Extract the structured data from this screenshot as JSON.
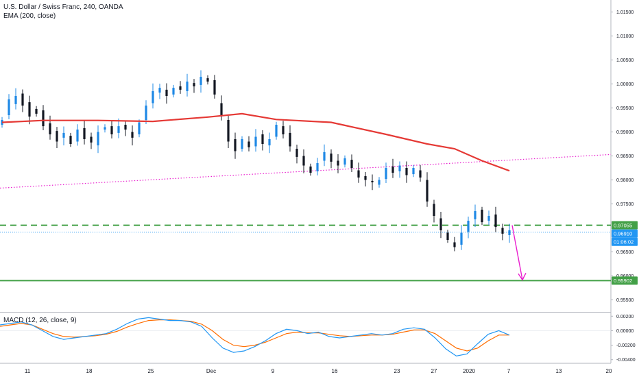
{
  "header": {
    "title": "U.S. Dollar / Swiss Franc, 240, OANDA",
    "indicator": "EMA (200, close)"
  },
  "macd_label": "MACD (12, 26, close, 9)",
  "colors": {
    "up": "#1e88e5",
    "down": "#131722",
    "ema": "#e53935",
    "green": "#43a047",
    "magenta": "#e91ece",
    "last_price": "#2196f3",
    "macd_line": "#2196f3",
    "signal_line": "#ff6d00"
  },
  "chart_data": [
    {
      "type": "candlestick",
      "title": "U.S. Dollar / Swiss Franc, 240, OANDA",
      "ylim": [
        0.9525,
        1.0175
      ],
      "y_ticks": [
        "1.01500",
        "1.01000",
        "1.00500",
        "1.00000",
        "0.99500",
        "0.99000",
        "0.98500",
        "0.98000",
        "0.97500",
        "0.96500",
        "0.96000",
        "0.95500"
      ],
      "x_ticks": [
        "11",
        "18",
        "25",
        "Dec",
        "9",
        "16",
        "23",
        "27",
        "2020",
        "7",
        "13",
        "20"
      ],
      "close_path": [
        [
          0.9915,
          0.9925
        ],
        [
          0.9935,
          0.9968
        ],
        [
          0.9958,
          0.9975
        ],
        [
          0.998,
          0.9955
        ],
        [
          0.9962,
          0.9932
        ],
        [
          0.9948,
          0.9938
        ],
        [
          0.9945,
          0.9912
        ],
        [
          0.9918,
          0.9895
        ],
        [
          0.9902,
          0.988
        ],
        [
          0.9888,
          0.9898
        ],
        [
          0.9892,
          0.9875
        ],
        [
          0.988,
          0.9905
        ],
        [
          0.9908,
          0.9885
        ],
        [
          0.989,
          0.9878
        ],
        [
          0.9872,
          0.99
        ],
        [
          0.9905,
          0.991
        ],
        [
          0.9912,
          0.9895
        ],
        [
          0.9898,
          0.9912
        ],
        [
          0.9915,
          0.9905
        ],
        [
          0.99,
          0.9888
        ],
        [
          0.9895,
          0.992
        ],
        [
          0.9925,
          0.9955
        ],
        [
          0.996,
          0.9985
        ],
        [
          0.9982,
          0.9992
        ],
        [
          0.9988,
          0.9975
        ],
        [
          0.9978,
          0.9992
        ],
        [
          0.9995,
          0.9988
        ],
        [
          0.9985,
          1.0005
        ],
        [
          1.0002,
          0.9995
        ],
        [
          0.9998,
          1.0015
        ],
        [
          1.0012,
          1.0005
        ],
        [
          1.0008,
          0.9978
        ],
        [
          0.996,
          0.9935
        ],
        [
          0.9925,
          0.988
        ],
        [
          0.9885,
          0.986
        ],
        [
          0.9865,
          0.9885
        ],
        [
          0.988,
          0.9868
        ],
        [
          0.987,
          0.989
        ],
        [
          0.9895,
          0.9875
        ],
        [
          0.9872,
          0.9885
        ],
        [
          0.989,
          0.9915
        ],
        [
          0.9912,
          0.9895
        ],
        [
          0.9898,
          0.987
        ],
        [
          0.9865,
          0.9848
        ],
        [
          0.985,
          0.983
        ],
        [
          0.9828,
          0.9815
        ],
        [
          0.9818,
          0.9835
        ],
        [
          0.984,
          0.9858
        ],
        [
          0.9855,
          0.9838
        ],
        [
          0.984,
          0.983
        ],
        [
          0.9832,
          0.9845
        ],
        [
          0.9842,
          0.9825
        ],
        [
          0.982,
          0.9805
        ],
        [
          0.9808,
          0.98
        ],
        [
          0.9798,
          0.9795
        ],
        [
          0.979,
          0.98
        ],
        [
          0.9802,
          0.9825
        ],
        [
          0.9828,
          0.9815
        ],
        [
          0.9818,
          0.983
        ],
        [
          0.9825,
          0.981
        ],
        [
          0.9812,
          0.9825
        ],
        [
          0.982,
          0.9805
        ],
        [
          0.98,
          0.9755
        ],
        [
          0.975,
          0.9725
        ],
        [
          0.972,
          0.9695
        ],
        [
          0.969,
          0.9675
        ],
        [
          0.967,
          0.966
        ],
        [
          0.9665,
          0.969
        ],
        [
          0.9692,
          0.9715
        ],
        [
          0.9718,
          0.9735
        ],
        [
          0.9738,
          0.9712
        ],
        [
          0.9715,
          0.9725
        ],
        [
          0.9728,
          0.9702
        ],
        [
          0.97,
          0.9688
        ],
        [
          0.9685,
          0.9695
        ]
      ],
      "ema_200": [
        [
          0,
          0.992
        ],
        [
          6,
          0.9924
        ],
        [
          14,
          0.9924
        ],
        [
          22,
          0.9922
        ],
        [
          30,
          0.9931
        ],
        [
          35,
          0.9938
        ],
        [
          40,
          0.9926
        ],
        [
          48,
          0.992
        ],
        [
          56,
          0.9895
        ],
        [
          62,
          0.9875
        ],
        [
          66,
          0.9865
        ],
        [
          70,
          0.984
        ],
        [
          74,
          0.9819
        ]
      ],
      "trendline_start": 0.9783,
      "trendline_end": 0.9853,
      "resistance_level": "0.97055",
      "support_level": "0.95902",
      "last_price": "0.96910",
      "countdown": "01:06:02",
      "projection_target": 0.95902
    },
    {
      "type": "line",
      "title": "MACD (12, 26, close, 9)",
      "ylim": [
        -0.0045,
        0.0025
      ],
      "y_ticks": [
        "0.00200",
        "0.00000",
        "-0.00200",
        "-0.00400"
      ],
      "series": [
        {
          "values": [
            0.0008,
            0.001,
            0.0012,
            0.0008,
            0.0,
            -0.0008,
            -0.0012,
            -0.001,
            -0.0008,
            -0.0006,
            -0.0004,
            0.0002,
            0.001,
            0.0016,
            0.0018,
            0.0016,
            0.0014,
            0.0014,
            0.0012,
            0.0006,
            -0.001,
            -0.0024,
            -0.003,
            -0.0028,
            -0.0022,
            -0.0014,
            -0.0004,
            0.0002,
            0.0,
            -0.0004,
            -0.0002,
            -0.0008,
            -0.001,
            -0.0008,
            -0.0006,
            -0.0004,
            -0.0006,
            -0.0004,
            0.0002,
            0.0004,
            0.0002,
            -0.001,
            -0.0025,
            -0.0035,
            -0.0032,
            -0.0018,
            -0.0005,
            0.0,
            -0.0006
          ]
        },
        {
          "values": [
            0.0006,
            0.0008,
            0.001,
            0.0008,
            0.0002,
            -0.0004,
            -0.0008,
            -0.0009,
            -0.0008,
            -0.0007,
            -0.0005,
            -0.0001,
            0.0005,
            0.001,
            0.0014,
            0.0015,
            0.0015,
            0.0014,
            0.0013,
            0.0009,
            0.0,
            -0.0012,
            -0.002,
            -0.0022,
            -0.002,
            -0.0016,
            -0.001,
            -0.0004,
            -0.0002,
            -0.0003,
            -0.0003,
            -0.0005,
            -0.0007,
            -0.0008,
            -0.0007,
            -0.0006,
            -0.0006,
            -0.0005,
            -0.0002,
            0.0001,
            0.0001,
            -0.0004,
            -0.0014,
            -0.0024,
            -0.0028,
            -0.0024,
            -0.0014,
            -0.0006,
            -0.0006
          ]
        }
      ]
    }
  ]
}
